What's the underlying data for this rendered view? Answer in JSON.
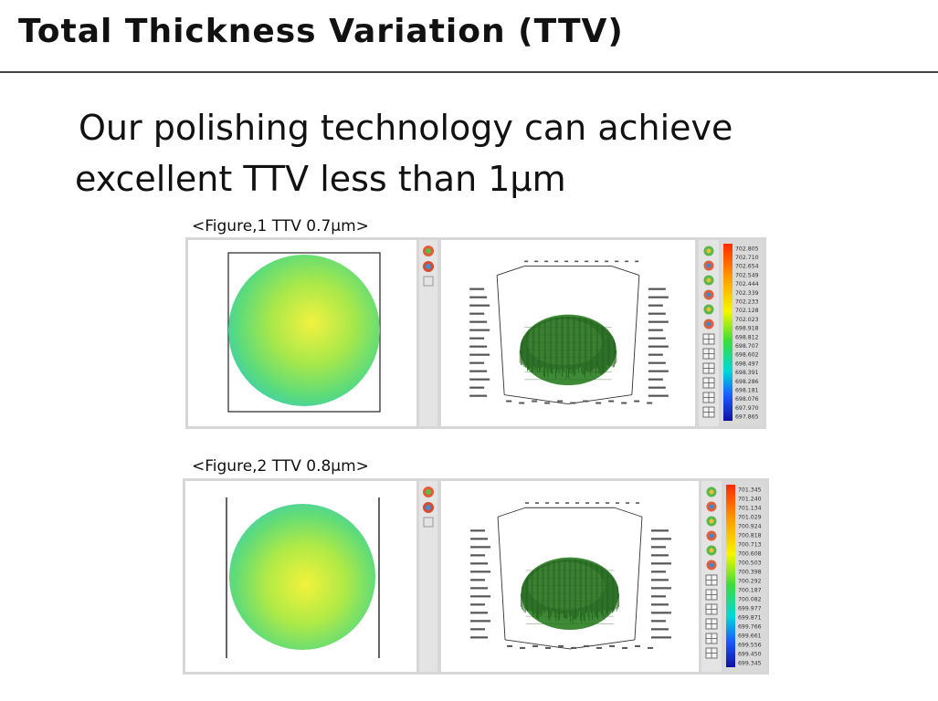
{
  "slide": {
    "title": "Total Thickness Variation (TTV)",
    "body_line1": "Our polishing technology can achieve",
    "body_line2": "excellent TTV  less than 1µm"
  },
  "figures": [
    {
      "caption": "<Figure,1 TTV 0.7µm>",
      "scale_labels": [
        "702.805",
        "702.710",
        "702.654",
        "702.549",
        "702.444",
        "702.339",
        "702.233",
        "702.128",
        "702.023",
        "698.918",
        "698.812",
        "698.707",
        "698.602",
        "698.497",
        "698.391",
        "698.286",
        "698.181",
        "698.076",
        "697.970",
        "697.865"
      ]
    },
    {
      "caption": "<Figure,2 TTV 0.8µm>",
      "scale_labels": [
        "701.345",
        "701.240",
        "701.134",
        "701.029",
        "700.924",
        "700.818",
        "700.713",
        "700.608",
        "700.503",
        "700.398",
        "700.292",
        "700.187",
        "700.082",
        "699.977",
        "699.871",
        "699.766",
        "699.661",
        "699.556",
        "699.450",
        "699.345"
      ]
    }
  ],
  "colors": {
    "map_edge": "#3fd0a8",
    "map_mid": "#7fe060",
    "map_center": "#f2f240",
    "mesh": "#2f7a2a",
    "panel_bg": "#d7d7d7"
  }
}
